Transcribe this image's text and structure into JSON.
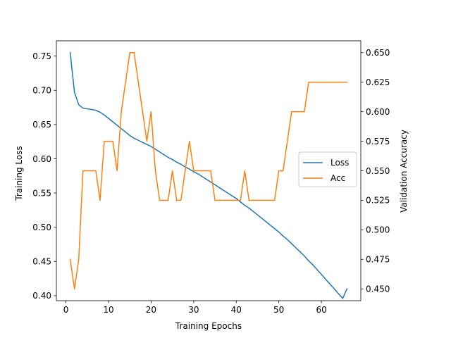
{
  "chart_data": {
    "type": "line",
    "title": "",
    "xlabel": "Training Epochs",
    "ylabel_left": "Training Loss",
    "ylabel_right": "Validation Accuracy",
    "xlim": [
      -2.25,
      69.25
    ],
    "ylim_left": [
      0.3927,
      0.7723
    ],
    "ylim_right": [
      0.44,
      0.66
    ],
    "x_ticks": [
      0,
      10,
      20,
      30,
      40,
      50,
      60
    ],
    "y_ticks_left": [
      0.4,
      0.45,
      0.5,
      0.55,
      0.6,
      0.65,
      0.7,
      0.75
    ],
    "y_ticks_right": [
      0.45,
      0.475,
      0.5,
      0.525,
      0.55,
      0.575,
      0.6,
      0.625,
      0.65
    ],
    "grid": false,
    "legend_position": "center right",
    "x": [
      1,
      2,
      3,
      4,
      5,
      6,
      7,
      8,
      9,
      10,
      11,
      12,
      13,
      14,
      15,
      16,
      17,
      18,
      19,
      20,
      21,
      22,
      23,
      24,
      25,
      26,
      27,
      28,
      29,
      30,
      31,
      32,
      33,
      34,
      35,
      36,
      37,
      38,
      39,
      40,
      41,
      42,
      43,
      44,
      45,
      46,
      47,
      48,
      49,
      50,
      51,
      52,
      53,
      54,
      55,
      56,
      57,
      58,
      59,
      60,
      61,
      62,
      63,
      64,
      65,
      66
    ],
    "series": [
      {
        "name": "Loss",
        "axis": "left",
        "color": "#1f77b4",
        "values": [
          0.755,
          0.697,
          0.679,
          0.674,
          0.673,
          0.672,
          0.671,
          0.668,
          0.664,
          0.659,
          0.654,
          0.649,
          0.644,
          0.639,
          0.634,
          0.63,
          0.627,
          0.624,
          0.621,
          0.618,
          0.614,
          0.61,
          0.606,
          0.602,
          0.599,
          0.595,
          0.592,
          0.588,
          0.585,
          0.581,
          0.578,
          0.574,
          0.57,
          0.566,
          0.562,
          0.558,
          0.554,
          0.55,
          0.546,
          0.542,
          0.537,
          0.532,
          0.528,
          0.523,
          0.518,
          0.513,
          0.508,
          0.503,
          0.498,
          0.493,
          0.487,
          0.482,
          0.476,
          0.47,
          0.464,
          0.458,
          0.451,
          0.445,
          0.438,
          0.431,
          0.424,
          0.417,
          0.41,
          0.403,
          0.396,
          0.41
        ]
      },
      {
        "name": "Acc",
        "axis": "right",
        "color": "#ff7f0e",
        "values": [
          0.475,
          0.45,
          0.475,
          0.55,
          0.55,
          0.55,
          0.55,
          0.525,
          0.575,
          0.575,
          0.575,
          0.55,
          0.6,
          0.625,
          0.65,
          0.65,
          0.625,
          0.6,
          0.575,
          0.6,
          0.55,
          0.525,
          0.525,
          0.525,
          0.55,
          0.525,
          0.525,
          0.55,
          0.575,
          0.55,
          0.55,
          0.55,
          0.55,
          0.55,
          0.525,
          0.525,
          0.525,
          0.525,
          0.525,
          0.525,
          0.525,
          0.55,
          0.525,
          0.525,
          0.525,
          0.525,
          0.525,
          0.525,
          0.525,
          0.55,
          0.55,
          0.575,
          0.6,
          0.6,
          0.6,
          0.6,
          0.625,
          0.625,
          0.625,
          0.625,
          0.625,
          0.625,
          0.625,
          0.625,
          0.625,
          0.625
        ]
      }
    ]
  }
}
